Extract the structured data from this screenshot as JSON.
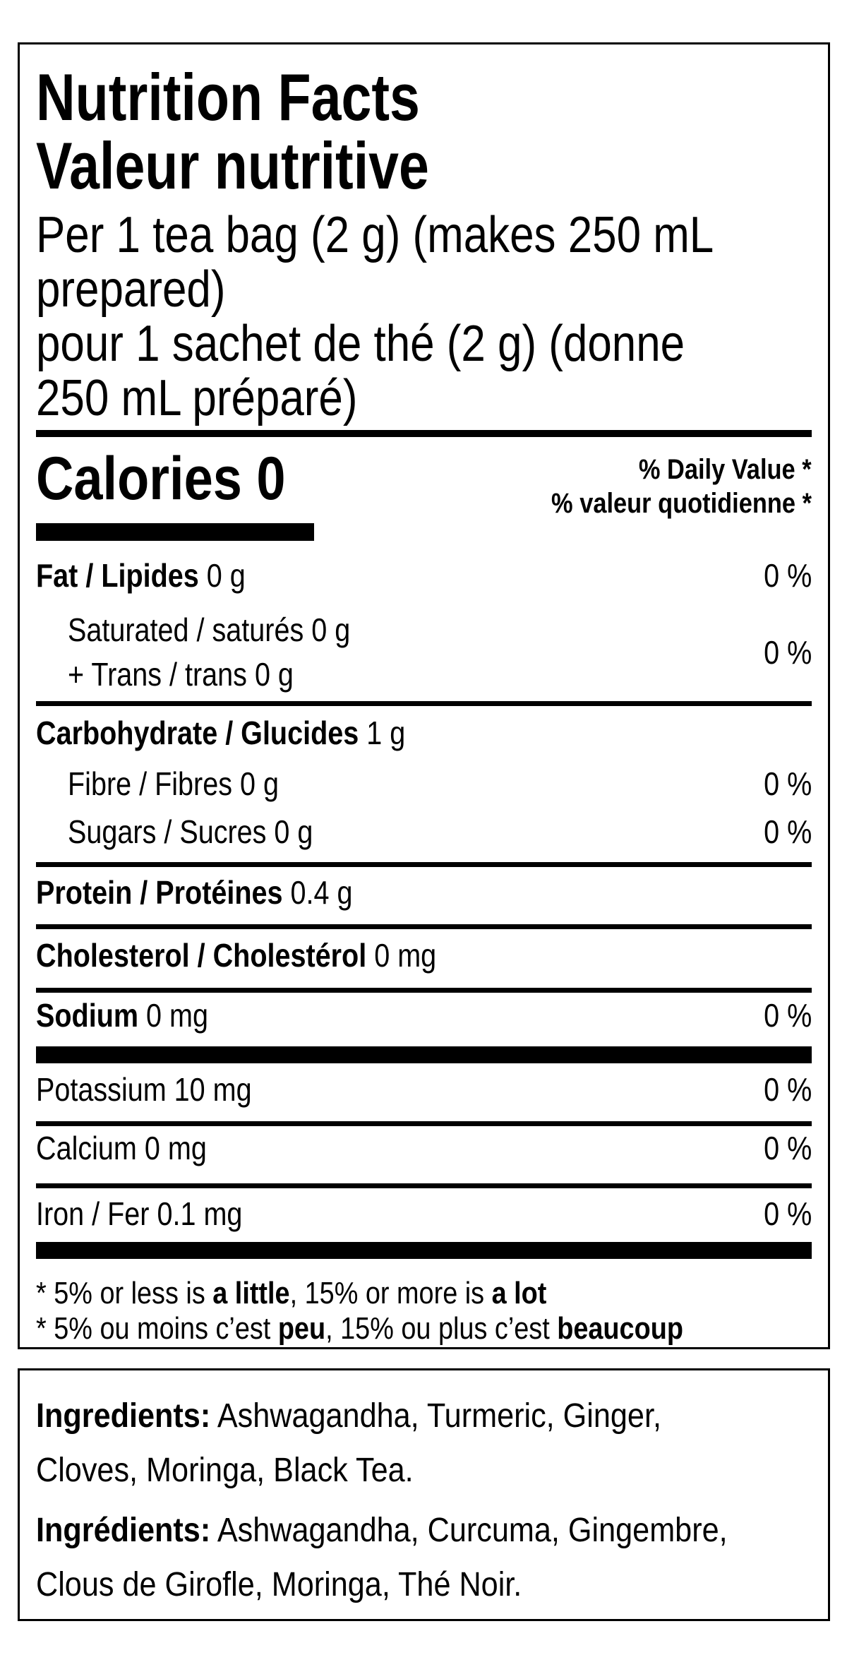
{
  "nutrition_facts": {
    "title_en": "Nutrition Facts",
    "title_fr": "Valeur nutritive",
    "serving_lines": [
      "Per 1 tea bag (2 g) (makes 250 mL",
      "prepared)",
      "pour 1 sachet de thé (2 g) (donne",
      "250 mL préparé)"
    ],
    "calories_label": "Calories 0",
    "daily_value_header_en": "% Daily Value *",
    "daily_value_header_fr": "% valeur quotidienne *",
    "rows": {
      "fat": {
        "bold": "Fat / Lipides",
        "rest": " 0 g",
        "dv": "0 %"
      },
      "saturated_line": "Saturated / saturés 0 g",
      "trans_line": "+ Trans / trans 0 g",
      "sat_trans_dv": "0 %",
      "carbohydrate": {
        "bold": "Carbohydrate / Glucides",
        "rest": " 1 g"
      },
      "fibre": {
        "text": "Fibre / Fibres 0 g",
        "dv": "0 %"
      },
      "sugars": {
        "text": "Sugars / Sucres 0 g",
        "dv": "0 %"
      },
      "protein": {
        "bold": "Protein / Protéines",
        "rest": " 0.4 g"
      },
      "cholesterol": {
        "bold": "Cholesterol / Cholestérol",
        "rest": " 0 mg"
      },
      "sodium": {
        "bold": "Sodium",
        "rest": " 0 mg",
        "dv": "0 %"
      },
      "potassium": {
        "text": "Potassium 10 mg",
        "dv": "0 %"
      },
      "calcium": {
        "text": "Calcium 0 mg",
        "dv": "0 %"
      },
      "iron": {
        "text": "Iron / Fer 0.1 mg",
        "dv": "0 %"
      }
    },
    "footnote_en": {
      "pre": "* 5% or less is ",
      "bold1": "a little",
      "mid": ", 15% or more is ",
      "bold2": "a lot"
    },
    "footnote_fr": {
      "pre": "* 5% ou moins c’est ",
      "bold1": "peu",
      "mid": ", 15% ou plus c’est ",
      "bold2": "beaucoup"
    }
  },
  "ingredients": {
    "en": {
      "label": "Ingredients:",
      "line1_rest": " Ashwagandha, Turmeric, Ginger,",
      "line2": "Cloves, Moringa, Black Tea."
    },
    "fr": {
      "label": "Ingrédients:",
      "line1_rest": " Ashwagandha, Curcuma, Gingembre,",
      "line2": "Clous de Girofle, Moringa, Thé Noir."
    }
  },
  "colors": {
    "text": "#000000",
    "background": "#ffffff",
    "bar": "#000000"
  }
}
